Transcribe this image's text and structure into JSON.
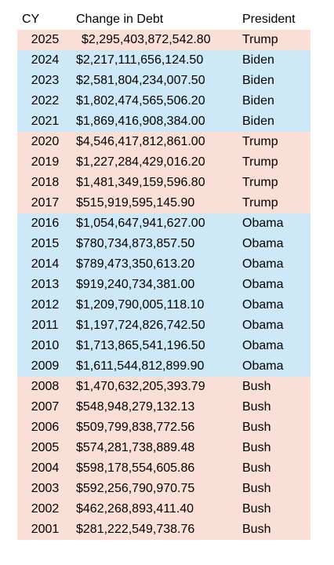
{
  "table": {
    "headers": {
      "year": "CY",
      "change": "Change in Debt",
      "president": "President"
    },
    "colors": {
      "republican_row": "#fadfd7",
      "democrat_row": "#cde8f6"
    },
    "rows": [
      {
        "year": "2025",
        "change": "$2,295,403,872,542.80",
        "president": "Trump",
        "party": "rep"
      },
      {
        "year": "2024",
        "change": "$2,217,111,656,124.50",
        "president": "Biden",
        "party": "dem"
      },
      {
        "year": "2023",
        "change": "$2,581,804,234,007.50",
        "president": "Biden",
        "party": "dem"
      },
      {
        "year": "2022",
        "change": "$1,802,474,565,506.20",
        "president": "Biden",
        "party": "dem"
      },
      {
        "year": "2021",
        "change": "$1,869,416,908,384.00",
        "president": "Biden",
        "party": "dem"
      },
      {
        "year": "2020",
        "change": "$4,546,417,812,861.00",
        "president": "Trump",
        "party": "rep"
      },
      {
        "year": "2019",
        "change": "$1,227,284,429,016.20",
        "president": "Trump",
        "party": "rep"
      },
      {
        "year": "2018",
        "change": "$1,481,349,159,596.80",
        "president": "Trump",
        "party": "rep"
      },
      {
        "year": "2017",
        "change": "$515,919,595,145.90",
        "president": "Trump",
        "party": "rep"
      },
      {
        "year": "2016",
        "change": "$1,054,647,941,627.00",
        "president": "Obama",
        "party": "dem"
      },
      {
        "year": "2015",
        "change": "$780,734,873,857.50",
        "president": "Obama",
        "party": "dem"
      },
      {
        "year": "2014",
        "change": "$789,473,350,613.20",
        "president": "Obama",
        "party": "dem"
      },
      {
        "year": "2013",
        "change": "$919,240,734,381.00",
        "president": "Obama",
        "party": "dem"
      },
      {
        "year": "2012",
        "change": "$1,209,790,005,118.10",
        "president": "Obama",
        "party": "dem"
      },
      {
        "year": "2011",
        "change": "$1,197,724,826,742.50",
        "president": "Obama",
        "party": "dem"
      },
      {
        "year": "2010",
        "change": "$1,713,865,541,196.50",
        "president": "Obama",
        "party": "dem"
      },
      {
        "year": "2009",
        "change": "$1,611,544,812,899.90",
        "president": "Obama",
        "party": "dem"
      },
      {
        "year": "2008",
        "change": "$1,470,632,205,393.79",
        "president": "Bush",
        "party": "rep"
      },
      {
        "year": "2007",
        "change": "$548,948,279,132.13",
        "president": "Bush",
        "party": "rep"
      },
      {
        "year": "2006",
        "change": "$509,799,838,772.56",
        "president": "Bush",
        "party": "rep"
      },
      {
        "year": "2005",
        "change": "$574,281,738,889.48",
        "president": "Bush",
        "party": "rep"
      },
      {
        "year": "2004",
        "change": "$598,178,554,605.86",
        "president": "Bush",
        "party": "rep"
      },
      {
        "year": "2003",
        "change": "$592,256,790,970.75",
        "president": "Bush",
        "party": "rep"
      },
      {
        "year": "2002",
        "change": "$462,268,893,411.40",
        "president": "Bush",
        "party": "rep"
      },
      {
        "year": "2001",
        "change": "$281,222,549,738.76",
        "president": "Bush",
        "party": "rep"
      }
    ]
  }
}
